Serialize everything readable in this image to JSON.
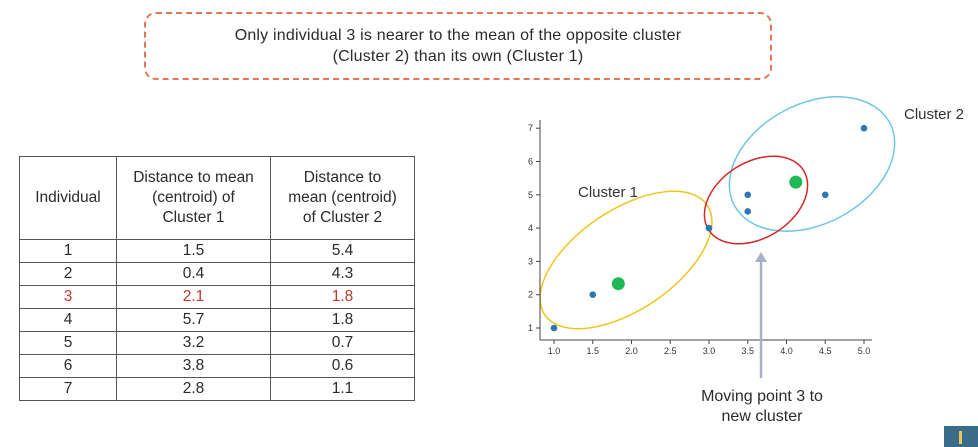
{
  "callout": {
    "line1": "Only individual 3 is nearer to the mean of the opposite cluster",
    "line2": "(Cluster 2) than its own (Cluster 1)"
  },
  "table": {
    "headers": [
      "Individual",
      "Distance to mean (centroid) of Cluster 1",
      "Distance to mean (centroid) of Cluster 2"
    ],
    "header_lines": [
      [
        "Individual"
      ],
      [
        "Distance to mean",
        "(centroid) of",
        "Cluster 1"
      ],
      [
        "Distance to",
        "mean (centroid)",
        "of Cluster 2"
      ]
    ],
    "rows": [
      [
        "1",
        "1.5",
        "5.4"
      ],
      [
        "2",
        "0.4",
        "4.3"
      ],
      [
        "3",
        "2.1",
        "1.8"
      ],
      [
        "4",
        "5.7",
        "1.8"
      ],
      [
        "5",
        "3.2",
        "0.7"
      ],
      [
        "6",
        "3.8",
        "0.6"
      ],
      [
        "7",
        "2.8",
        "1.1"
      ]
    ],
    "highlight_row": 2,
    "highlight_color": "#c0392b"
  },
  "chart_data": {
    "type": "scatter",
    "xlim": [
      0.9,
      5.1
    ],
    "ylim": [
      0.8,
      7.3
    ],
    "x_ticks": [
      1.0,
      1.5,
      2.0,
      2.5,
      3.0,
      3.5,
      4.0,
      4.5,
      5.0
    ],
    "x_tick_labels": [
      "1.0",
      "1.5",
      "2.0",
      "2.5",
      "3.0",
      "3.5",
      "4.0",
      "4.5",
      "5.0"
    ],
    "y_ticks": [
      1,
      2,
      3,
      4,
      5,
      6,
      7
    ],
    "y_tick_labels": [
      "1",
      "2",
      "3",
      "4",
      "5",
      "6",
      "7"
    ],
    "points": [
      {
        "x": 1.0,
        "y": 1.0
      },
      {
        "x": 1.5,
        "y": 2.0
      },
      {
        "x": 3.0,
        "y": 4.0
      },
      {
        "x": 5.0,
        "y": 7.0
      },
      {
        "x": 3.5,
        "y": 5.0
      },
      {
        "x": 4.5,
        "y": 5.0
      },
      {
        "x": 3.5,
        "y": 4.5
      }
    ],
    "point_color": "#2e75b6",
    "centroids": [
      {
        "x": 1.83,
        "y": 2.33
      },
      {
        "x": 4.12,
        "y": 5.38
      }
    ],
    "centroid_color": "#1db954",
    "cluster_labels": [
      "Cluster 1",
      "Cluster 2"
    ],
    "cluster_colors": {
      "cluster1": "#f0c419",
      "cluster2": "#6ec6e6",
      "moved": "#d62728"
    },
    "grid": false
  },
  "annotation": {
    "line1": "Moving point 3 to",
    "line2": "new cluster",
    "arrow_color": "#a9afc6"
  }
}
